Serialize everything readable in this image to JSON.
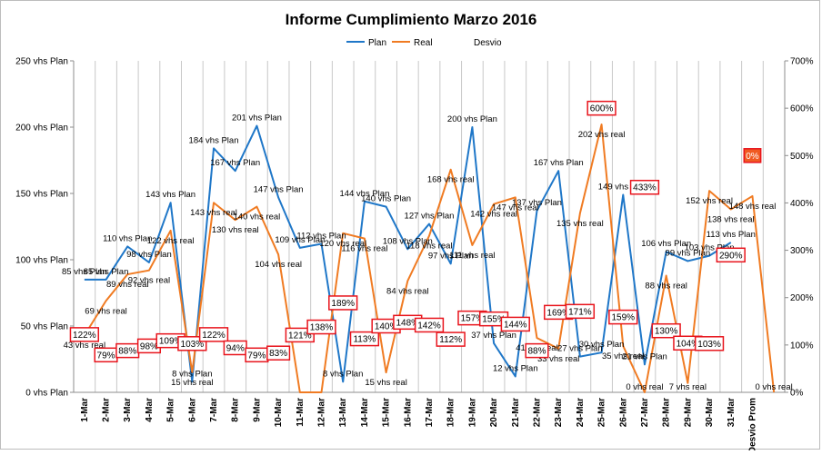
{
  "chart_data": {
    "type": "line",
    "title": "Informe Cumplimiento Marzo 2016",
    "legend_placement": "top",
    "grid": "vertical",
    "categories": [
      "1-Mar",
      "2-Mar",
      "3-Mar",
      "4-Mar",
      "5-Mar",
      "6-Mar",
      "7-Mar",
      "8-Mar",
      "9-Mar",
      "10-Mar",
      "11-Mar",
      "12-Mar",
      "13-Mar",
      "14-Mar",
      "15-Mar",
      "16-Mar",
      "17-Mar",
      "18-Mar",
      "19-Mar",
      "20-Mar",
      "21-Mar",
      "22-Mar",
      "23-Mar",
      "24-Mar",
      "25-Mar",
      "26-Mar",
      "27-Mar",
      "28-Mar",
      "29-Mar",
      "30-Mar",
      "31-Mar",
      "Desvio Prom",
      ""
    ],
    "y_left": {
      "ticks": [
        "0 vhs Plan",
        "50 vhs Plan",
        "100 vhs Plan",
        "150 vhs Plan",
        "200 vhs Plan",
        "250 vhs Plan"
      ],
      "range": [
        0,
        250
      ]
    },
    "y_right": {
      "ticks": [
        "0%",
        "100%",
        "200%",
        "300%",
        "400%",
        "500%",
        "600%",
        "700%"
      ],
      "range": [
        0,
        700
      ]
    },
    "series": [
      {
        "name": "Plan",
        "color": "#1f77c8",
        "values": [
          85,
          85,
          110,
          98,
          143,
          8,
          184,
          167,
          201,
          147,
          109,
          112,
          8,
          144,
          140,
          108,
          127,
          97,
          200,
          37,
          12,
          137,
          167,
          27,
          30,
          149,
          21,
          106,
          99,
          103,
          113,
          null,
          null
        ],
        "labels": [
          "85 vhs Plan",
          "85 vhs Plan",
          "110 vhs Plan",
          "98 vhs Plan",
          "143 vhs Plan",
          "8 vhs Plan",
          "184 vhs Plan",
          "167 vhs Plan",
          "201 vhs Plan",
          "147 vhs Plan",
          "109 vhs Plan",
          "112 vhs Plan",
          "8 vhs Plan",
          "144 vhs Plan",
          "140 vhs Plan",
          "108 vhs Plan",
          "127 vhs Plan",
          "97 vhs Plan",
          "200 vhs Plan",
          "37 vhs Plan",
          "12 vhs Plan",
          "137 vhs Plan",
          "167 vhs Plan",
          "27 vhs Plan",
          "30 vhs Plan",
          "149 vhs Plan",
          "21 vhs Plan",
          "106 vhs Plan",
          "99 vhs Plan",
          "103 vhs Plan",
          "113 vhs Plan",
          "",
          ""
        ]
      },
      {
        "name": "Real",
        "color": "#f07b22",
        "values": [
          43,
          69,
          89,
          92,
          122,
          15,
          143,
          130,
          140,
          104,
          0,
          0,
          120,
          116,
          15,
          84,
          118,
          168,
          111,
          142,
          147,
          41,
          33,
          135,
          202,
          35,
          0,
          88,
          7,
          152,
          138,
          148,
          0
        ],
        "labels": [
          "43 vhs real",
          "69 vhs real",
          "89 vhs real",
          "92 vhs real",
          "122 vhs real",
          "15 vhs real",
          "143 vhs real",
          "130 vhs real",
          "140 vhs real",
          "104 vhs real",
          "",
          "",
          "120 vhs real",
          "116 vhs real",
          "15 vhs real",
          "84 vhs real",
          "118 vhs real",
          "168 vhs real",
          "111 vhs real",
          "142 vhs real",
          "147 vhs real",
          "41 vhs real",
          "33 vhs real",
          "135 vhs real",
          "202 vhs real",
          "35 vhs real",
          "0 vhs real",
          "88 vhs real",
          "7 vhs real",
          "152 vhs real",
          "138 vhs real",
          "148 vhs real",
          "0 vhs real"
        ]
      },
      {
        "name": "Desvio",
        "color": "#e8141c",
        "values": [
          122,
          79,
          88,
          98,
          109,
          103,
          122,
          94,
          79,
          83,
          121,
          138,
          189,
          113,
          140,
          148,
          142,
          112,
          157,
          155,
          144,
          88,
          169,
          171,
          600,
          159,
          433,
          130,
          104,
          103,
          290,
          0,
          null
        ],
        "labels": [
          "122%",
          "79%",
          "88%",
          "98%",
          "109%",
          "103%",
          "122%",
          "94%",
          "79%",
          "83%",
          "121%",
          "138%",
          "189%",
          "113%",
          "140%",
          "148%",
          "142%",
          "112%",
          "157%",
          "155%",
          "144%",
          "88%",
          "169%",
          "171%",
          "600%",
          "159%",
          "433%",
          "130%",
          "104%",
          "103%",
          "290%",
          "0%",
          ""
        ]
      }
    ]
  }
}
